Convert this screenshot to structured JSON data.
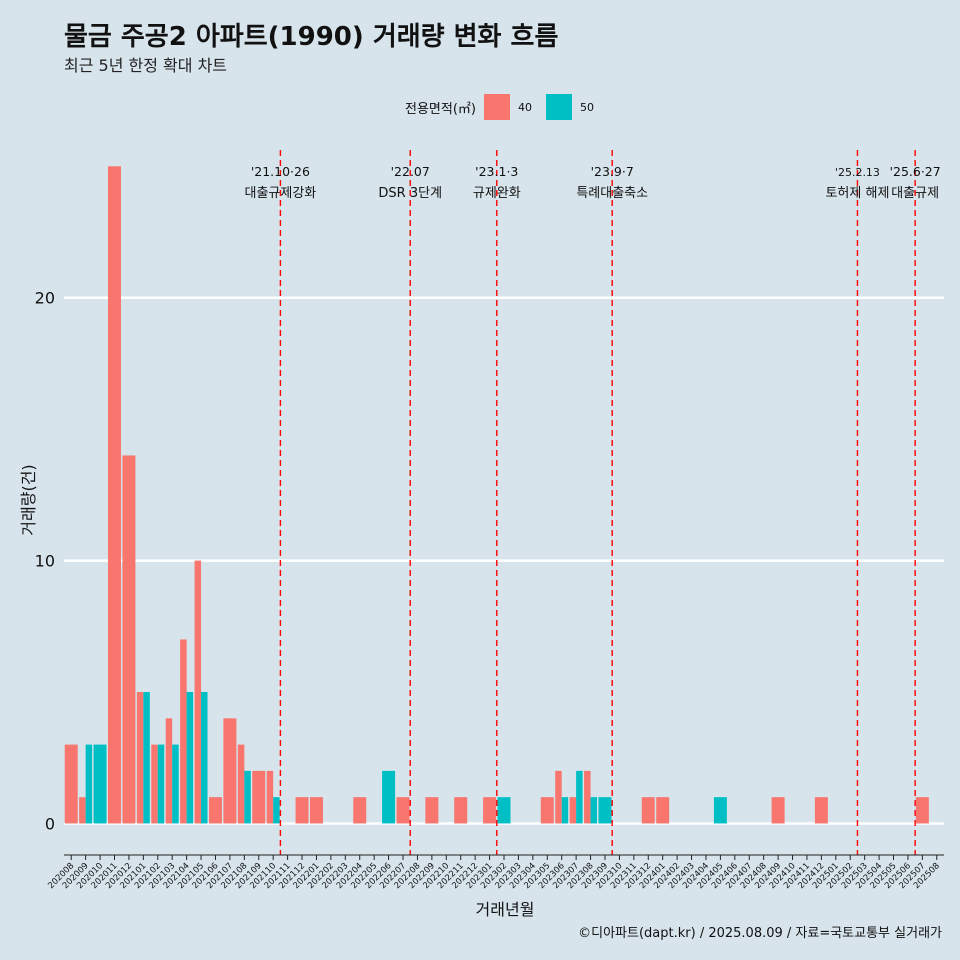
{
  "header": {
    "title": "물금 주공2 아파트(1990) 거래량 변화 흐름",
    "subtitle": "최근 5년 한정 확대 차트"
  },
  "legend": {
    "title": "전용면적(㎡)",
    "items": [
      {
        "label": "40",
        "color": "#f8766d"
      },
      {
        "label": "50",
        "color": "#00bfc4"
      }
    ]
  },
  "footer": "©디아파트(dapt.kr) / 2025.08.09 / 자료=국토교통부 실거래가",
  "chart_data": {
    "type": "bar",
    "xlabel": "거래년월",
    "ylabel": "거래량(건)",
    "y_ticks": [
      0,
      10,
      20
    ],
    "ylim": [
      -1.2,
      26
    ],
    "categories": [
      "202008",
      "202009",
      "202010",
      "202011",
      "202012",
      "202101",
      "202102",
      "202103",
      "202104",
      "202105",
      "202106",
      "202107",
      "202108",
      "202109",
      "202110",
      "202111",
      "202112",
      "202201",
      "202202",
      "202203",
      "202204",
      "202205",
      "202206",
      "202207",
      "202208",
      "202209",
      "202210",
      "202211",
      "202212",
      "202301",
      "202302",
      "202303",
      "202304",
      "202305",
      "202306",
      "202307",
      "202308",
      "202309",
      "202310",
      "202311",
      "202312",
      "202401",
      "202402",
      "202403",
      "202404",
      "202405",
      "202406",
      "202407",
      "202408",
      "202409",
      "202410",
      "202411",
      "202412",
      "202501",
      "202502",
      "202503",
      "202504",
      "202505",
      "202506",
      "202507",
      "202508"
    ],
    "series": [
      {
        "name": "40",
        "color": "#f8766d",
        "values": [
          3,
          1,
          0,
          25,
          14,
          5,
          3,
          4,
          7,
          10,
          1,
          4,
          3,
          2,
          2,
          0,
          1,
          1,
          0,
          0,
          1,
          0,
          0,
          1,
          0,
          1,
          0,
          1,
          0,
          1,
          0,
          0,
          0,
          1,
          2,
          1,
          2,
          0,
          0,
          0,
          1,
          1,
          0,
          0,
          0,
          0,
          0,
          0,
          0,
          1,
          0,
          0,
          1,
          0,
          0,
          0,
          0,
          0,
          0,
          1,
          0
        ]
      },
      {
        "name": "50",
        "color": "#00bfc4",
        "values": [
          0,
          3,
          3,
          0,
          0,
          5,
          3,
          3,
          5,
          5,
          0,
          0,
          2,
          0,
          1,
          0,
          0,
          0,
          0,
          0,
          0,
          0,
          2,
          0,
          0,
          0,
          0,
          0,
          0,
          0,
          1,
          0,
          0,
          0,
          1,
          2,
          1,
          1,
          0,
          0,
          0,
          0,
          0,
          0,
          0,
          1,
          0,
          0,
          0,
          0,
          0,
          0,
          0,
          0,
          0,
          0,
          0,
          0,
          0,
          0,
          0
        ]
      }
    ],
    "events": [
      {
        "after": "202110",
        "date": "'21.10·26",
        "label": "대출규제강화"
      },
      {
        "after": "202207",
        "date": "'22.07",
        "label": "DSR 3단계"
      },
      {
        "after": "202301",
        "date": "'23.1·3",
        "label": "규제완화"
      },
      {
        "after": "202309",
        "date": "'23.9·7",
        "label": "특례대출축소"
      },
      {
        "after": "202502",
        "date": "'25.2.13",
        "label": "토허제 해제"
      },
      {
        "after": "202506",
        "date": "'25.6·27",
        "label": "대출규제"
      }
    ]
  }
}
